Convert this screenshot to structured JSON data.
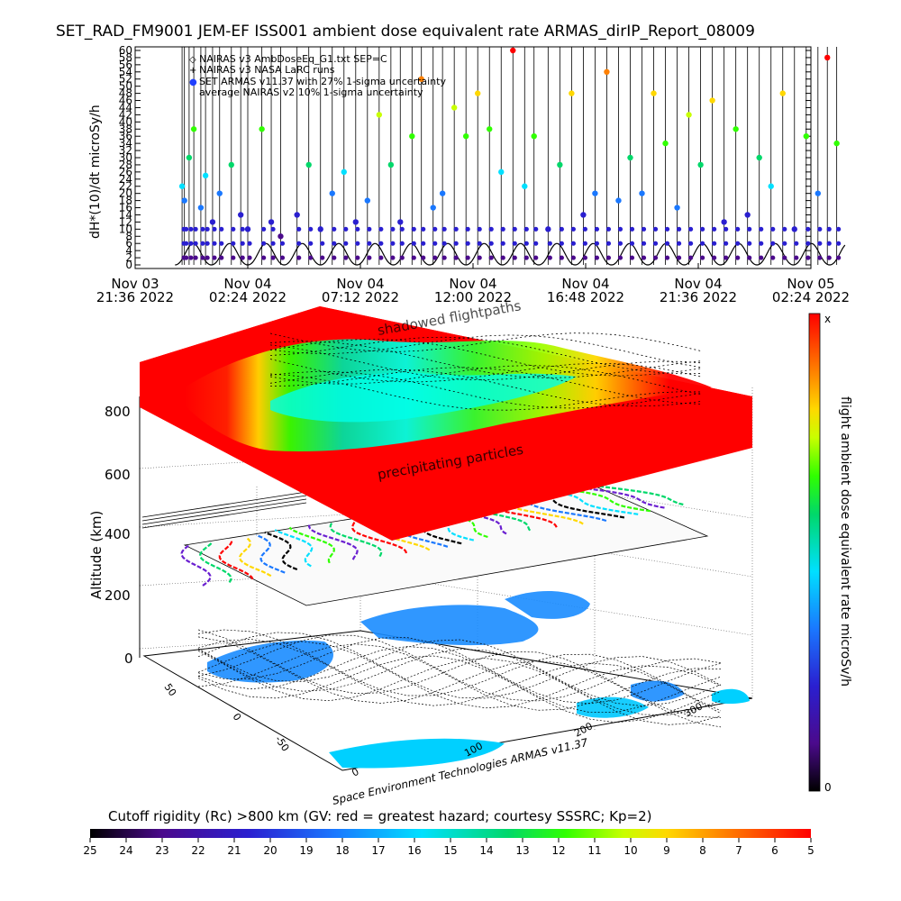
{
  "title": "SET_RAD_FM9001  JEM-EF ISS001 ambient dose equivalent rate ARMAS_dirIP_Report_08009",
  "colors": {
    "nairas_v3": "#000000",
    "armas": "#1f3fff",
    "ramp": [
      "#000000",
      "#4b0a8c",
      "#2a1fd0",
      "#1a78ff",
      "#00e0ff",
      "#00d86a",
      "#30ff00",
      "#c8ff00",
      "#ffd800",
      "#ff8000",
      "#ff0000"
    ]
  },
  "chart_data": [
    {
      "type": "scatter",
      "title": "SET_RAD_FM9001  JEM-EF ISS001 ambient dose equivalent rate ARMAS_dirIP_Report_08009",
      "ylabel": "dH*(10)/dt microSy/h",
      "xlabel": "",
      "ylim": [
        0,
        60
      ],
      "y_ticks": [
        0,
        2,
        4,
        6,
        8,
        10,
        12,
        14,
        16,
        18,
        20,
        22,
        24,
        26,
        28,
        30,
        32,
        34,
        36,
        38,
        40,
        42,
        44,
        46,
        48,
        50,
        52,
        54,
        56,
        58,
        60
      ],
      "x_ticks": [
        {
          "day": "Nov 03",
          "time": "21:36",
          "year": "2022"
        },
        {
          "day": "Nov 04",
          "time": "02:24",
          "year": "2022"
        },
        {
          "day": "Nov 04",
          "time": "07:12",
          "year": "2022"
        },
        {
          "day": "Nov 04",
          "time": "12:00",
          "year": "2022"
        },
        {
          "day": "Nov 04",
          "time": "16:48",
          "year": "2022"
        },
        {
          "day": "Nov 04",
          "time": "21:36",
          "year": "2022"
        },
        {
          "day": "Nov 05",
          "time": "02:24",
          "year": "2022"
        }
      ],
      "legend": [
        {
          "symbol": "◇",
          "label": "NAIRAS v3 AmbDoseEq_G1.txt SEP=C"
        },
        {
          "symbol": "+",
          "label": "NAIRAS v3 NASA LaRC runs"
        },
        {
          "symbol": "●",
          "label": "SET ARMAS v11.37 with 27% 1-sigma uncertainty"
        },
        {
          "symbol": "",
          "label": "average NAIRAS v2 10% 1-sigma uncertainty"
        }
      ],
      "legend_position": "top-left",
      "series": [
        {
          "name": "NAIRAS v3 AmbDoseEq_G1.txt SEP=C",
          "kind": "orbital oscillation",
          "x_range_hours": [
            1.7,
            30.3
          ],
          "period_hours": 1.55,
          "y_min": 0,
          "y_max": 6
        },
        {
          "name": "SET ARMAS v11.37 with 27% 1-sigma uncertainty",
          "points": [
            [
              2.0,
              22
            ],
            [
              2.1,
              18
            ],
            [
              2.3,
              30
            ],
            [
              2.5,
              38
            ],
            [
              2.8,
              16
            ],
            [
              3.0,
              25
            ],
            [
              3.3,
              12
            ],
            [
              3.6,
              20
            ],
            [
              4.1,
              28
            ],
            [
              4.5,
              14
            ],
            [
              4.8,
              10
            ],
            [
              5.4,
              38
            ],
            [
              5.8,
              12
            ],
            [
              6.2,
              8
            ],
            [
              6.9,
              14
            ],
            [
              7.4,
              28
            ],
            [
              7.9,
              10
            ],
            [
              8.4,
              20
            ],
            [
              8.9,
              26
            ],
            [
              9.4,
              12
            ],
            [
              9.9,
              18
            ],
            [
              10.4,
              42
            ],
            [
              10.9,
              28
            ],
            [
              11.3,
              12
            ],
            [
              11.8,
              36
            ],
            [
              12.2,
              52
            ],
            [
              12.7,
              16
            ],
            [
              13.1,
              20
            ],
            [
              13.6,
              44
            ],
            [
              14.1,
              36
            ],
            [
              14.6,
              48
            ],
            [
              15.1,
              38
            ],
            [
              15.6,
              26
            ],
            [
              16.1,
              60
            ],
            [
              16.6,
              22
            ],
            [
              17.0,
              36
            ],
            [
              17.6,
              10
            ],
            [
              18.1,
              28
            ],
            [
              18.6,
              48
            ],
            [
              19.1,
              14
            ],
            [
              19.6,
              20
            ],
            [
              20.1,
              54
            ],
            [
              20.6,
              18
            ],
            [
              21.1,
              30
            ],
            [
              21.6,
              20
            ],
            [
              22.1,
              48
            ],
            [
              22.6,
              34
            ],
            [
              23.1,
              16
            ],
            [
              23.6,
              42
            ],
            [
              24.1,
              28
            ],
            [
              24.6,
              46
            ],
            [
              25.1,
              12
            ],
            [
              25.6,
              38
            ],
            [
              26.1,
              14
            ],
            [
              26.6,
              30
            ],
            [
              27.1,
              22
            ],
            [
              27.6,
              48
            ],
            [
              28.1,
              10
            ],
            [
              28.6,
              36
            ],
            [
              29.1,
              20
            ],
            [
              29.5,
              58
            ],
            [
              29.9,
              34
            ]
          ]
        }
      ]
    },
    {
      "type": "3d-map",
      "ylabel": "Altitude (km)",
      "z_ticks": [
        0,
        200,
        400,
        600,
        800
      ],
      "lat_ticks": [
        50,
        0,
        -50
      ],
      "lon_ticks": [
        0,
        100,
        200,
        300
      ],
      "annotations": [
        "shadowed flightpaths",
        "precipitating particles"
      ],
      "credit": "Space Environment Technologies ARMAS v11.37"
    },
    {
      "type": "colorbar",
      "orientation": "vertical",
      "label": "flight ambient dose equivalent rate microSv/h",
      "max_label": "x",
      "min_label": "0"
    },
    {
      "type": "colorbar",
      "orientation": "horizontal",
      "label": "Cutoff rigidity (Rc) >800 km (GV: red = greatest hazard; courtesy SSSRC; Kp=2)",
      "ticks": [
        25,
        24,
        23,
        22,
        21,
        20,
        19,
        18,
        17,
        16,
        15,
        14,
        13,
        12,
        11,
        10,
        9,
        8,
        7,
        6,
        5
      ]
    }
  ]
}
